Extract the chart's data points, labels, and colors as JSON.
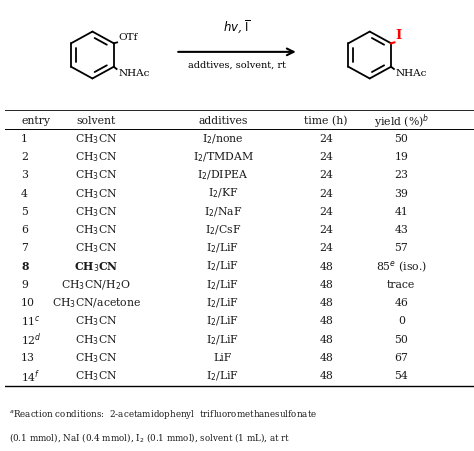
{
  "header": [
    "entry",
    "solvent",
    "additives",
    "time (h)",
    "yield (%)$^{b}$"
  ],
  "rows": [
    [
      "1",
      "CH$_3$CN",
      "I$_2$/none",
      "24",
      "50"
    ],
    [
      "2",
      "CH$_3$CN",
      "I$_2$/TMDAM",
      "24",
      "19"
    ],
    [
      "3",
      "CH$_3$CN",
      "I$_2$/DIPEA",
      "24",
      "23"
    ],
    [
      "4",
      "CH$_3$CN",
      "I$_2$/KF",
      "24",
      "39"
    ],
    [
      "5",
      "CH$_3$CN",
      "I$_2$/NaF",
      "24",
      "41"
    ],
    [
      "6",
      "CH$_3$CN",
      "I$_2$/CsF",
      "24",
      "43"
    ],
    [
      "7",
      "CH$_3$CN",
      "I$_2$/LiF",
      "24",
      "57"
    ],
    [
      "8",
      "CH$_3$CN",
      "I$_2$/LiF",
      "48",
      "85$^{e}$ (iso.)"
    ],
    [
      "9",
      "CH$_3$CN/H$_2$O",
      "I$_2$/LiF",
      "48",
      "trace"
    ],
    [
      "10",
      "CH$_3$CN/acetone",
      "I$_2$/LiF",
      "48",
      "46"
    ],
    [
      "11$^{c}$",
      "CH$_3$CN",
      "I$_2$/LiF",
      "48",
      "0"
    ],
    [
      "12$^{d}$",
      "CH$_3$CN",
      "I$_2$/LiF",
      "48",
      "50"
    ],
    [
      "13",
      "CH$_3$CN",
      "LiF",
      "48",
      "67"
    ],
    [
      "14$^{f}$",
      "CH$_3$CN",
      "I$_2$/LiF",
      "48",
      "54"
    ]
  ],
  "bold_row": 7,
  "bold_cols": [
    0,
    1
  ],
  "footnote_line1": "$^{a}$Reaction conditions:  2-acetamidophenyl  trifluoromethanesulfonate",
  "footnote_line2": "(0.1 mmol), NaI (0.4 mmol), I$_2$ (0.1 mmol), solvent (1 mL), at rt",
  "bg_color": "#ffffff",
  "text_color": "#1a1a1a"
}
